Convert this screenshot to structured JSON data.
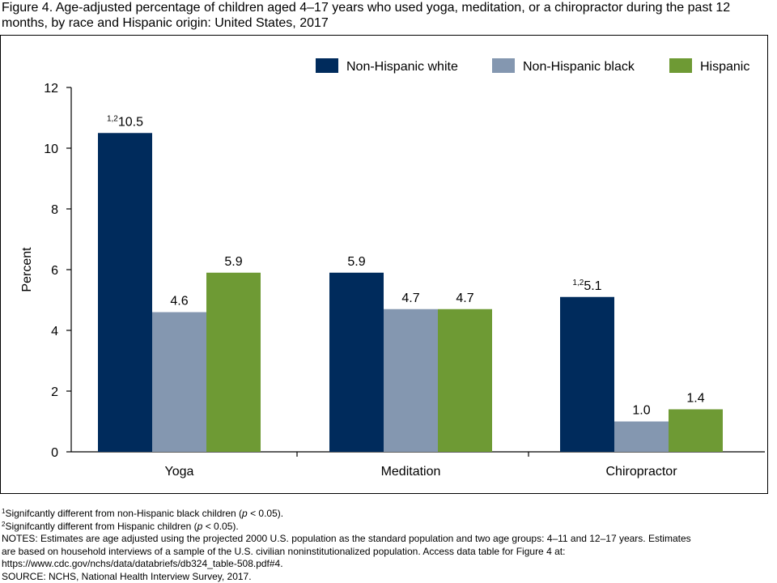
{
  "title": "Figure 4. Age-adjusted percentage of children aged 4–17 years who used yoga, meditation, or a chiropractor during the past 12 months, by race and Hispanic origin: United States, 2017",
  "chart_data": {
    "type": "bar",
    "ylabel": "Percent",
    "xlabel": "",
    "ylim": [
      0,
      12
    ],
    "yticks": [
      0,
      2,
      4,
      6,
      8,
      10,
      12
    ],
    "categories": [
      "Yoga",
      "Meditation",
      "Chiropractor"
    ],
    "legend_position": "top-right",
    "grid": false,
    "series": [
      {
        "name": "Non-Hispanic white",
        "color": "#002B5C",
        "values": [
          10.5,
          5.9,
          5.1
        ],
        "labels": [
          "10.5",
          "5.9",
          "5.1"
        ],
        "superscripts": [
          "1,2",
          "",
          "1,2"
        ]
      },
      {
        "name": "Non-Hispanic black",
        "color": "#8497B0",
        "values": [
          4.6,
          4.7,
          1.0
        ],
        "labels": [
          "4.6",
          "4.7",
          "1.0"
        ],
        "superscripts": [
          "",
          "",
          ""
        ]
      },
      {
        "name": "Hispanic",
        "color": "#6E9A34",
        "values": [
          5.9,
          4.7,
          1.4
        ],
        "labels": [
          "5.9",
          "4.7",
          "1.4"
        ],
        "superscripts": [
          "",
          "",
          ""
        ]
      }
    ]
  },
  "notes": {
    "fn1_mark": "1",
    "fn1_text": "Signifcantly different from non-Hispanic black children (",
    "fn1_p": "p",
    "fn1_tail": " < 0.05).",
    "fn2_mark": "2",
    "fn2_text": "Signifcantly different from Hispanic children (",
    "fn2_p": "p",
    "fn2_tail": " < 0.05).",
    "notes_line1": "NOTES: Estimates are age adjusted using the projected 2000 U.S. population as the standard population and two age groups: 4–11 and 12–17 years. Estimates",
    "notes_line2": "are based on household interviews of a sample of the U.S. civilian noninstitutionalized population. Access data table for Figure 4 at:",
    "notes_line3": "https://www.cdc.gov/nchs/data/databriefs/db324_table-508.pdf#4.",
    "source": "SOURCE: NCHS, National Health Interview Survey, 2017."
  }
}
